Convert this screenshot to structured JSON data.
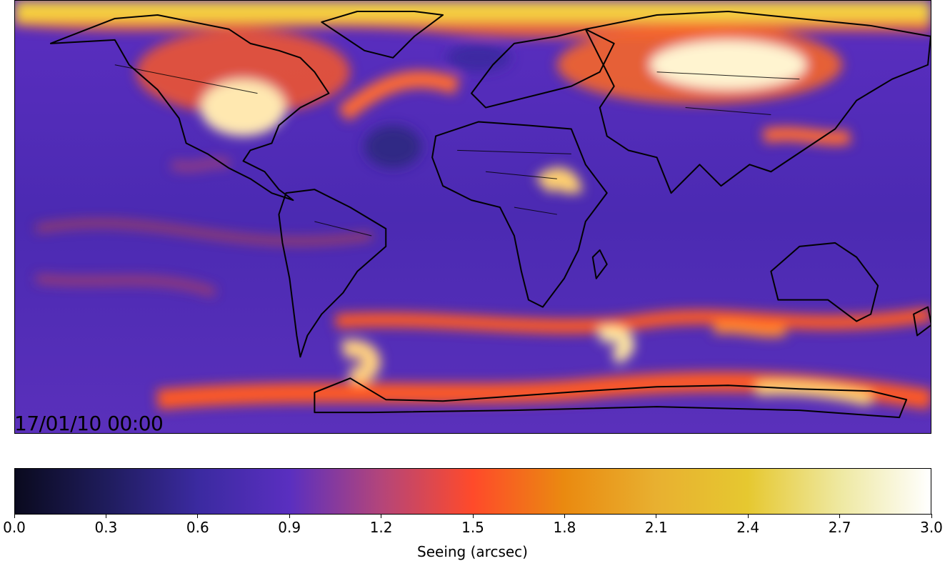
{
  "map": {
    "timestamp": "17/01/10 00:00",
    "variable": "Seeing",
    "background_color": "#4a2bb8",
    "coastline_color": "#000000"
  },
  "colorbar": {
    "label": "Seeing (arcsec)",
    "min": 0.0,
    "max": 3.0,
    "ticks": [
      "0.0",
      "0.3",
      "0.6",
      "0.9",
      "1.2",
      "1.5",
      "1.8",
      "2.1",
      "2.4",
      "2.7",
      "3.0"
    ],
    "colormap_stops": [
      {
        "value": 0.0,
        "color": "#0a0a1e"
      },
      {
        "value": 0.3,
        "color": "#1f1c5c"
      },
      {
        "value": 0.6,
        "color": "#3b2aa0"
      },
      {
        "value": 0.9,
        "color": "#5a2fc0"
      },
      {
        "value": 1.2,
        "color": "#b4457a"
      },
      {
        "value": 1.5,
        "color": "#ff4a2a"
      },
      {
        "value": 1.8,
        "color": "#ea8a10"
      },
      {
        "value": 2.1,
        "color": "#e8b030"
      },
      {
        "value": 2.4,
        "color": "#e6c830"
      },
      {
        "value": 2.7,
        "color": "#eee8a0"
      },
      {
        "value": 3.0,
        "color": "#ffffff"
      }
    ]
  }
}
